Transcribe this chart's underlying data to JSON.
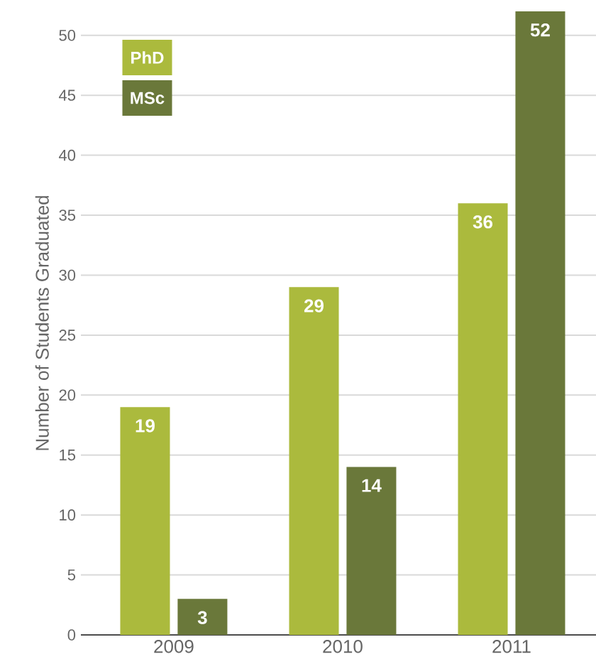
{
  "chart_data": {
    "type": "bar",
    "ylabel": "Number of Students Graduated",
    "categories": [
      "2009",
      "2010",
      "2011"
    ],
    "series": [
      {
        "name": "PhD",
        "color": "#abba3d",
        "values": [
          19,
          29,
          36
        ]
      },
      {
        "name": "MSc",
        "color": "#6a783a",
        "values": [
          3,
          14,
          52
        ]
      }
    ],
    "ylim": [
      0,
      52
    ],
    "yticks": [
      0,
      5,
      10,
      15,
      20,
      25,
      30,
      35,
      40,
      45,
      50
    ],
    "grid": "y",
    "legend": "top left",
    "data_labels": true
  }
}
